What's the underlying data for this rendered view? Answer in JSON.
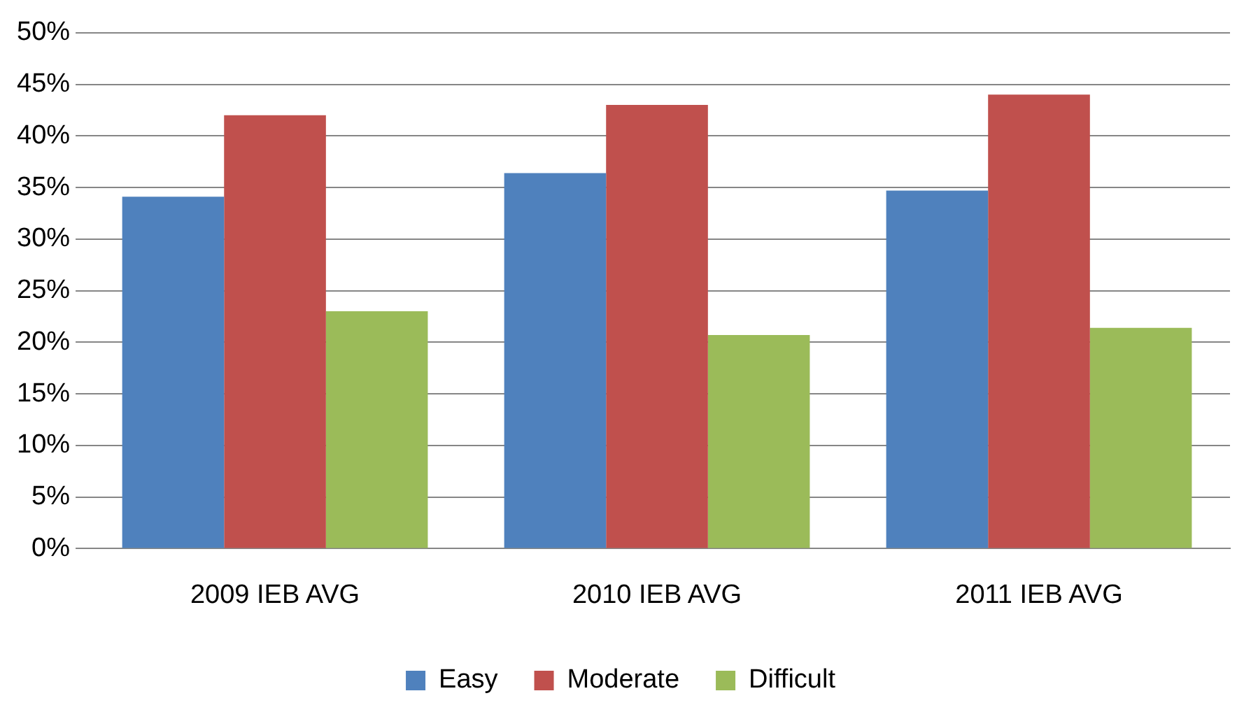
{
  "chart_data": {
    "type": "bar",
    "categories": [
      "2009 IEB AVG",
      "2010 IEB AVG",
      "2011 IEB AVG"
    ],
    "series": [
      {
        "name": "Easy",
        "color": "#4f81bd",
        "values": [
          34.1,
          36.4,
          34.7
        ]
      },
      {
        "name": "Moderate",
        "color": "#c0504d",
        "values": [
          42,
          43,
          44
        ]
      },
      {
        "name": "Difficult",
        "color": "#9bbb59",
        "values": [
          23,
          20.7,
          21.4
        ]
      }
    ],
    "ylim": [
      0,
      50
    ],
    "yticks": [
      {
        "value": 0,
        "label": "0%"
      },
      {
        "value": 5,
        "label": "5%"
      },
      {
        "value": 10,
        "label": "10%"
      },
      {
        "value": 15,
        "label": "15%"
      },
      {
        "value": 20,
        "label": "20%"
      },
      {
        "value": 25,
        "label": "25%"
      },
      {
        "value": 30,
        "label": "30%"
      },
      {
        "value": 35,
        "label": "35%"
      },
      {
        "value": 40,
        "label": "40%"
      },
      {
        "value": 45,
        "label": "45%"
      },
      {
        "value": 50,
        "label": "50%"
      }
    ],
    "grid": "y",
    "legend": "bottom"
  }
}
